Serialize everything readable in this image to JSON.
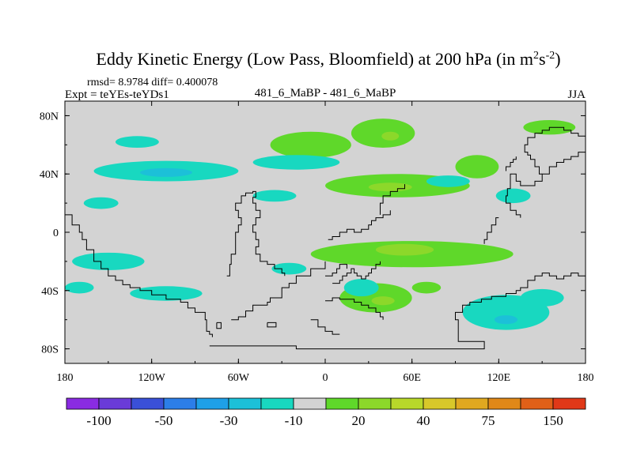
{
  "chart_data": {
    "type": "heatmap",
    "title": "Eddy Kinetic Energy (Low Pass, Bloomfield) at 200 hPa (in m",
    "title_units": {
      "sup1": "2",
      "mid": "s",
      "sup2": "-2",
      "close": ")"
    },
    "stats": "rmsd= 8.9784 diff= 0.400078",
    "left_label": "Expt = teYEs-teYDs1",
    "center_label": "481_6_MaBP - 481_6_MaBP",
    "right_label": "JJA",
    "x_ticks": [
      {
        "value": -180,
        "label": "180"
      },
      {
        "value": -120,
        "label": "120W"
      },
      {
        "value": -60,
        "label": "60W"
      },
      {
        "value": 0,
        "label": "0"
      },
      {
        "value": 60,
        "label": "60E"
      },
      {
        "value": 120,
        "label": "120E"
      },
      {
        "value": 180,
        "label": "180"
      }
    ],
    "y_ticks": [
      {
        "value": 80,
        "label": "80N"
      },
      {
        "value": 40,
        "label": "40N"
      },
      {
        "value": 0,
        "label": "0"
      },
      {
        "value": -40,
        "label": "40S"
      },
      {
        "value": -80,
        "label": "80S"
      }
    ],
    "xlim": [
      -180,
      180
    ],
    "ylim": [
      -90,
      90
    ],
    "background_color": "#d3d3d3",
    "colorbar": {
      "colors": [
        "#8a2be2",
        "#6a3bd8",
        "#3a50d8",
        "#2c7ee8",
        "#1ea0e8",
        "#1cc0d8",
        "#18d8c0",
        "#d3d3d3",
        "#5fd82a",
        "#8cd82a",
        "#b8d82a",
        "#d8c82a",
        "#e0a820",
        "#e08818",
        "#e06018",
        "#e03818"
      ],
      "labels": [
        {
          "boundary": 1,
          "text": "-100"
        },
        {
          "boundary": 3,
          "text": "-50"
        },
        {
          "boundary": 5,
          "text": "-30"
        },
        {
          "boundary": 7,
          "text": "-10"
        },
        {
          "boundary": 9,
          "text": "20"
        },
        {
          "boundary": 11,
          "text": "40"
        },
        {
          "boundary": 13,
          "text": "75"
        },
        {
          "boundary": 15,
          "text": "150"
        }
      ]
    },
    "features": [
      {
        "name": "north-atlantic-positive",
        "lon": -10,
        "lat": 60,
        "rlon": 28,
        "rlat": 9,
        "level": 1
      },
      {
        "name": "eurasia-positive-70n",
        "lon": 40,
        "lat": 68,
        "rlon": 22,
        "rlat": 10,
        "level": 1
      },
      {
        "name": "eurasia-core-70n",
        "lon": 45,
        "lat": 66,
        "rlon": 6,
        "rlat": 3,
        "level": 2
      },
      {
        "name": "arctic-east-positive",
        "lon": 155,
        "lat": 72,
        "rlon": 18,
        "rlat": 5,
        "level": 1
      },
      {
        "name": "central-asia-positive",
        "lon": 50,
        "lat": 32,
        "rlon": 50,
        "rlat": 8,
        "level": 1
      },
      {
        "name": "central-asia-core",
        "lon": 45,
        "lat": 31,
        "rlon": 15,
        "rlat": 3,
        "level": 2
      },
      {
        "name": "east-asia-positive",
        "lon": 105,
        "lat": 45,
        "rlon": 15,
        "rlat": 8,
        "level": 1
      },
      {
        "name": "south-indian-positive",
        "lon": 60,
        "lat": -15,
        "rlon": 70,
        "rlat": 9,
        "level": 1
      },
      {
        "name": "south-indian-core",
        "lon": 55,
        "lat": -12,
        "rlon": 20,
        "rlat": 4,
        "level": 2
      },
      {
        "name": "south-atlantic-positive",
        "lon": 35,
        "lat": -45,
        "rlon": 25,
        "rlat": 10,
        "level": 1
      },
      {
        "name": "south-atlantic-core",
        "lon": 40,
        "lat": -47,
        "rlon": 8,
        "rlat": 3,
        "level": 2
      },
      {
        "name": "southern-ocean-positive",
        "lon": 70,
        "lat": -38,
        "rlon": 10,
        "rlat": 4,
        "level": 1
      },
      {
        "name": "pacific-negative-40n",
        "lon": -110,
        "lat": 42,
        "rlon": 50,
        "rlat": 7,
        "level": -1
      },
      {
        "name": "pacific-negative-core",
        "lon": -110,
        "lat": 41,
        "rlon": 18,
        "rlat": 3,
        "level": -2
      },
      {
        "name": "pacific-negative-65n",
        "lon": -130,
        "lat": 62,
        "rlon": 15,
        "rlat": 4,
        "level": -1
      },
      {
        "name": "atlantic-negative-50n",
        "lon": -20,
        "lat": 48,
        "rlon": 30,
        "rlat": 5,
        "level": -1
      },
      {
        "name": "mid-atlantic-negative",
        "lon": -35,
        "lat": 25,
        "rlon": 15,
        "rlat": 4,
        "level": -1
      },
      {
        "name": "east-asia-negative",
        "lon": 130,
        "lat": 25,
        "rlon": 12,
        "rlat": 5,
        "level": -1
      },
      {
        "name": "east-asia-negative-2",
        "lon": 85,
        "lat": 35,
        "rlon": 15,
        "rlat": 4,
        "level": -1
      },
      {
        "name": "pacific-negative-40n-west",
        "lon": -155,
        "lat": 20,
        "rlon": 12,
        "rlat": 4,
        "level": -1
      },
      {
        "name": "southern-pacific-negative",
        "lon": -150,
        "lat": -20,
        "rlon": 25,
        "rlat": 6,
        "level": -1
      },
      {
        "name": "south-america-negative",
        "lon": -25,
        "lat": -25,
        "rlon": 12,
        "rlat": 4,
        "level": -1
      },
      {
        "name": "south-africa-negative",
        "lon": 25,
        "lat": -38,
        "rlon": 12,
        "rlat": 6,
        "level": -1
      },
      {
        "name": "southern-ocean-negative-40s",
        "lon": -110,
        "lat": -42,
        "rlon": 25,
        "rlat": 5,
        "level": -1
      },
      {
        "name": "australia-negative",
        "lon": 125,
        "lat": -55,
        "rlon": 30,
        "rlat": 12,
        "level": -1
      },
      {
        "name": "australia-negative-core",
        "lon": 125,
        "lat": -60,
        "rlon": 8,
        "rlat": 3,
        "level": -2
      },
      {
        "name": "new-zealand-negative",
        "lon": 150,
        "lat": -45,
        "rlon": 15,
        "rlat": 6,
        "level": -1
      },
      {
        "name": "southern-pacific-negative-2",
        "lon": -170,
        "lat": -38,
        "rlon": 10,
        "rlat": 4,
        "level": -1
      }
    ],
    "coastlines": [
      [
        [
          -180,
          12
        ],
        [
          -175,
          5
        ],
        [
          -170,
          0
        ],
        [
          -168,
          -5
        ],
        [
          -165,
          -12
        ],
        [
          -160,
          -20
        ],
        [
          -155,
          -25
        ],
        [
          -150,
          -30
        ],
        [
          -145,
          -33
        ],
        [
          -140,
          -36
        ],
        [
          -135,
          -38
        ],
        [
          -128,
          -40
        ],
        [
          -120,
          -43
        ],
        [
          -110,
          -46
        ],
        [
          -100,
          -48
        ],
        [
          -95,
          -52
        ],
        [
          -90,
          -55
        ],
        [
          -85,
          -55
        ],
        [
          -83,
          -60
        ],
        [
          -82,
          -68
        ],
        [
          -80,
          -70
        ],
        [
          -78,
          -72
        ]
      ],
      [
        [
          -80,
          -78
        ],
        [
          -60,
          -78
        ],
        [
          -40,
          -78
        ],
        [
          -20,
          -80
        ],
        [
          0,
          -80
        ],
        [
          20,
          -80
        ],
        [
          40,
          -80
        ],
        [
          60,
          -80
        ],
        [
          80,
          -80
        ],
        [
          100,
          -80
        ],
        [
          110,
          -80
        ],
        [
          110,
          -75
        ],
        [
          105,
          -75
        ],
        [
          95,
          -75
        ],
        [
          92,
          -72
        ],
        [
          92,
          -60
        ],
        [
          90,
          -55
        ],
        [
          95,
          -50
        ],
        [
          100,
          -48
        ],
        [
          108,
          -46
        ],
        [
          115,
          -44
        ],
        [
          125,
          -42
        ],
        [
          132,
          -40
        ],
        [
          135,
          -38
        ],
        [
          140,
          -33
        ],
        [
          145,
          -30
        ],
        [
          150,
          -28
        ],
        [
          155,
          -30
        ],
        [
          160,
          -32
        ],
        [
          165,
          -30
        ],
        [
          170,
          -28
        ],
        [
          175,
          -30
        ],
        [
          180,
          -30
        ]
      ],
      [
        [
          -65,
          -60
        ],
        [
          -60,
          -58
        ],
        [
          -55,
          -54
        ],
        [
          -50,
          -50
        ],
        [
          -40,
          -48
        ],
        [
          -38,
          -45
        ],
        [
          -30,
          -42
        ],
        [
          -30,
          -38
        ],
        [
          -25,
          -35
        ],
        [
          -20,
          -30
        ],
        [
          -10,
          -25
        ],
        [
          0,
          -20
        ]
      ],
      [
        [
          -68,
          -30
        ],
        [
          -66,
          -22
        ],
        [
          -65,
          -15
        ],
        [
          -62,
          -8
        ],
        [
          -62,
          0
        ],
        [
          -60,
          5
        ],
        [
          -58,
          10
        ],
        [
          -60,
          15
        ],
        [
          -62,
          20
        ],
        [
          -58,
          25
        ],
        [
          -55,
          27
        ],
        [
          -50,
          28
        ],
        [
          -48,
          24
        ],
        [
          -50,
          20
        ],
        [
          -48,
          15
        ],
        [
          -45,
          10
        ],
        [
          -48,
          5
        ],
        [
          -50,
          0
        ],
        [
          -48,
          -5
        ],
        [
          -46,
          -10
        ],
        [
          -48,
          -15
        ],
        [
          -45,
          -20
        ],
        [
          -40,
          -22
        ],
        [
          -35,
          -25
        ],
        [
          -30,
          -28
        ],
        [
          -28,
          -30
        ]
      ],
      [
        [
          0,
          -47
        ],
        [
          5,
          -45
        ],
        [
          10,
          -46
        ],
        [
          15,
          -46
        ],
        [
          20,
          -48
        ],
        [
          25,
          -50
        ],
        [
          30,
          -52
        ],
        [
          35,
          -55
        ],
        [
          38,
          -58
        ],
        [
          40,
          -60
        ]
      ],
      [
        [
          5,
          -35
        ],
        [
          10,
          -33
        ],
        [
          12,
          -30
        ],
        [
          15,
          -28
        ],
        [
          18,
          -25
        ],
        [
          20,
          -28
        ],
        [
          22,
          -30
        ],
        [
          25,
          -32
        ],
        [
          28,
          -30
        ],
        [
          30,
          -28
        ],
        [
          32,
          -25
        ],
        [
          35,
          -22
        ],
        [
          38,
          -20
        ]
      ],
      [
        [
          0,
          -30
        ],
        [
          5,
          -28
        ],
        [
          8,
          -25
        ],
        [
          10,
          -22
        ],
        [
          15,
          -25
        ]
      ],
      [
        [
          2,
          -5
        ],
        [
          5,
          -3
        ],
        [
          10,
          0
        ],
        [
          15,
          2
        ],
        [
          20,
          0
        ],
        [
          25,
          2
        ],
        [
          30,
          5
        ],
        [
          32,
          8
        ],
        [
          35,
          10
        ],
        [
          40,
          12
        ],
        [
          45,
          15
        ]
      ],
      [
        [
          38,
          12
        ],
        [
          38,
          20
        ],
        [
          40,
          25
        ],
        [
          45,
          28
        ],
        [
          50,
          30
        ],
        [
          55,
          33
        ]
      ],
      [
        [
          130,
          40
        ],
        [
          132,
          35
        ],
        [
          135,
          32
        ],
        [
          140,
          32
        ],
        [
          145,
          35
        ],
        [
          150,
          40
        ],
        [
          155,
          45
        ],
        [
          160,
          48
        ],
        [
          165,
          50
        ],
        [
          170,
          52
        ],
        [
          175,
          55
        ],
        [
          180,
          58
        ]
      ],
      [
        [
          130,
          40
        ],
        [
          128,
          30
        ],
        [
          126,
          25
        ],
        [
          125,
          20
        ],
        [
          128,
          15
        ],
        [
          132,
          12
        ],
        [
          135,
          10
        ]
      ],
      [
        [
          120,
          10
        ],
        [
          118,
          5
        ],
        [
          115,
          0
        ],
        [
          112,
          -5
        ],
        [
          110,
          -8
        ]
      ],
      [
        [
          150,
          40
        ],
        [
          148,
          45
        ],
        [
          145,
          50
        ],
        [
          142,
          53
        ],
        [
          140,
          55
        ],
        [
          138,
          60
        ],
        [
          140,
          65
        ],
        [
          145,
          68
        ],
        [
          150,
          70
        ],
        [
          155,
          72
        ],
        [
          160,
          72
        ],
        [
          165,
          70
        ],
        [
          170,
          68
        ],
        [
          175,
          66
        ],
        [
          180,
          66
        ]
      ],
      [
        [
          125,
          42
        ],
        [
          125,
          45
        ],
        [
          128,
          48
        ],
        [
          130,
          50
        ],
        [
          132,
          52
        ]
      ],
      [
        [
          -10,
          -60
        ],
        [
          -5,
          -65
        ],
        [
          0,
          -68
        ],
        [
          5,
          -70
        ],
        [
          10,
          -70
        ]
      ]
    ],
    "islands": [
      [
        [
          -75,
          -62
        ],
        [
          -72,
          -62
        ],
        [
          -72,
          -66
        ],
        [
          -75,
          -66
        ],
        [
          -75,
          -62
        ]
      ],
      [
        [
          -40,
          -62
        ],
        [
          -34,
          -62
        ],
        [
          -34,
          -65
        ],
        [
          -40,
          -65
        ],
        [
          -40,
          -62
        ]
      ]
    ]
  }
}
